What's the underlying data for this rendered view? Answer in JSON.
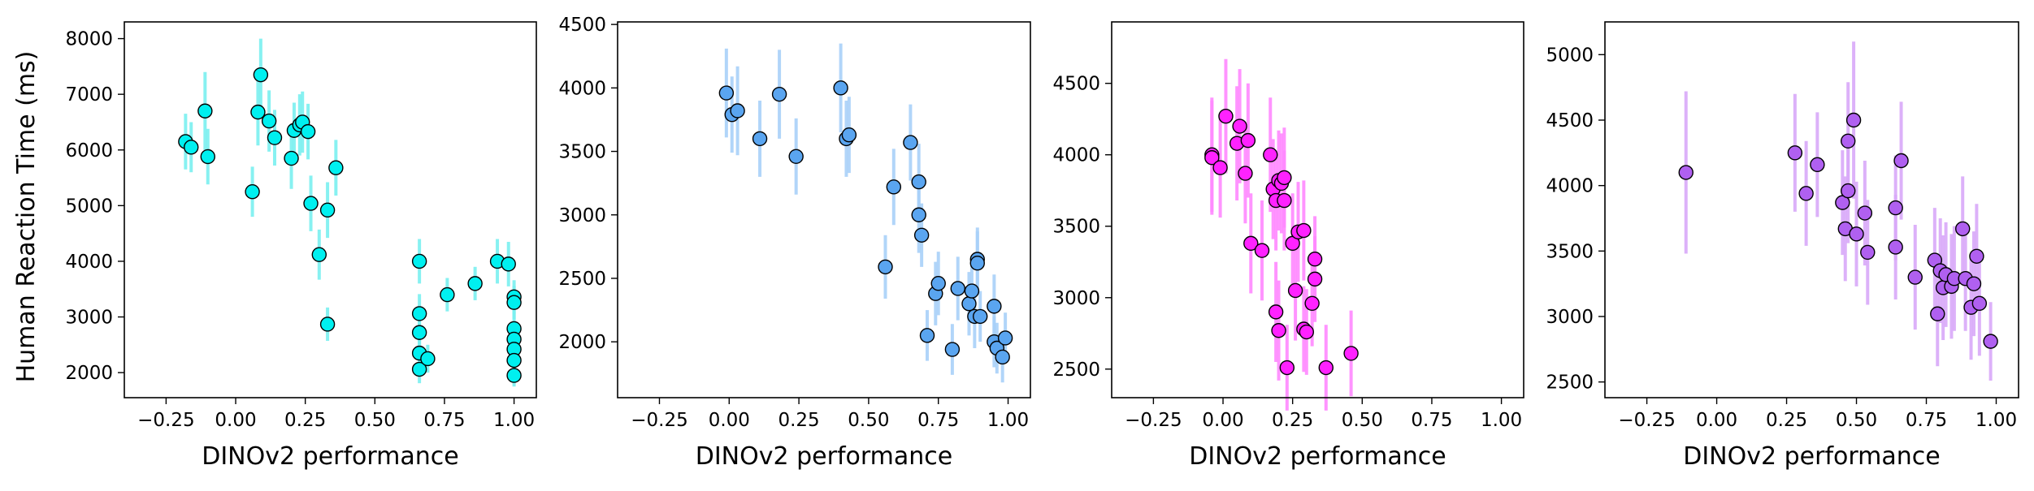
{
  "figure": {
    "ylabel": "Human Reaction Time (ms)"
  },
  "chart_data": [
    {
      "type": "scatter",
      "title": "",
      "xlabel": "DINOv2 performance",
      "ylabel": "Human Reaction Time (ms)",
      "xlim": [
        -0.4,
        1.08
      ],
      "ylim": [
        1550,
        8300
      ],
      "xticks": [
        -0.25,
        0.0,
        0.25,
        0.5,
        0.75,
        1.0
      ],
      "xtick_labels": [
        "−0.25",
        "0.00",
        "0.25",
        "0.50",
        "0.75",
        "1.00"
      ],
      "yticks": [
        2000,
        3000,
        4000,
        5000,
        6000,
        7000,
        8000
      ],
      "ytick_labels": [
        "2000",
        "3000",
        "4000",
        "5000",
        "6000",
        "7000",
        "8000"
      ],
      "colors": {
        "marker": "#00f0f0",
        "errorbar": "#7af0f0",
        "edge": "#000000"
      },
      "grid": false,
      "series": [
        {
          "points": [
            {
              "x": -0.18,
              "y": 6150,
              "err": 500
            },
            {
              "x": -0.16,
              "y": 6050,
              "err": 450
            },
            {
              "x": -0.11,
              "y": 6700,
              "err": 700
            },
            {
              "x": -0.1,
              "y": 5880,
              "err": 500
            },
            {
              "x": 0.06,
              "y": 5250,
              "err": 450
            },
            {
              "x": 0.08,
              "y": 6680,
              "err": 600
            },
            {
              "x": 0.09,
              "y": 7350,
              "err": 650
            },
            {
              "x": 0.12,
              "y": 6520,
              "err": 550
            },
            {
              "x": 0.14,
              "y": 6220,
              "err": 500
            },
            {
              "x": 0.2,
              "y": 5850,
              "err": 550
            },
            {
              "x": 0.21,
              "y": 6350,
              "err": 500
            },
            {
              "x": 0.23,
              "y": 6450,
              "err": 550
            },
            {
              "x": 0.24,
              "y": 6500,
              "err": 550
            },
            {
              "x": 0.26,
              "y": 6330,
              "err": 500
            },
            {
              "x": 0.27,
              "y": 5040,
              "err": 500
            },
            {
              "x": 0.3,
              "y": 4120,
              "err": 450
            },
            {
              "x": 0.33,
              "y": 4920,
              "err": 500
            },
            {
              "x": 0.33,
              "y": 2870,
              "err": 300
            },
            {
              "x": 0.36,
              "y": 5680,
              "err": 500
            },
            {
              "x": 0.66,
              "y": 4000,
              "err": 400
            },
            {
              "x": 0.66,
              "y": 3060,
              "err": 350
            },
            {
              "x": 0.66,
              "y": 2720,
              "err": 300
            },
            {
              "x": 0.66,
              "y": 2350,
              "err": 300
            },
            {
              "x": 0.66,
              "y": 2060,
              "err": 250
            },
            {
              "x": 0.69,
              "y": 2250,
              "err": 250
            },
            {
              "x": 0.76,
              "y": 3400,
              "err": 300
            },
            {
              "x": 0.86,
              "y": 3600,
              "err": 300
            },
            {
              "x": 0.94,
              "y": 4000,
              "err": 400
            },
            {
              "x": 0.98,
              "y": 3950,
              "err": 400
            },
            {
              "x": 1.0,
              "y": 3360,
              "err": 300
            },
            {
              "x": 1.0,
              "y": 3260,
              "err": 300
            },
            {
              "x": 1.0,
              "y": 2790,
              "err": 300
            },
            {
              "x": 1.0,
              "y": 2600,
              "err": 250
            },
            {
              "x": 1.0,
              "y": 2420,
              "err": 250
            },
            {
              "x": 1.0,
              "y": 2220,
              "err": 250
            },
            {
              "x": 1.0,
              "y": 1950,
              "err": 200
            }
          ]
        }
      ]
    },
    {
      "type": "scatter",
      "title": "",
      "xlabel": "DINOv2 performance",
      "ylabel": "",
      "xlim": [
        -0.4,
        1.08
      ],
      "ylim": [
        1560,
        4520
      ],
      "xticks": [
        -0.25,
        0.0,
        0.25,
        0.5,
        0.75,
        1.0
      ],
      "xtick_labels": [
        "−0.25",
        "0.00",
        "0.25",
        "0.50",
        "0.75",
        "1.00"
      ],
      "yticks": [
        2000,
        2500,
        3000,
        3500,
        4000,
        4500
      ],
      "ytick_labels": [
        "2000",
        "2500",
        "3000",
        "3500",
        "4000",
        "4500"
      ],
      "colors": {
        "marker": "#5aa5f0",
        "errorbar": "#a8d0f8",
        "edge": "#000000"
      },
      "grid": false,
      "series": [
        {
          "points": [
            {
              "x": -0.01,
              "y": 3960,
              "err": 350
            },
            {
              "x": 0.01,
              "y": 3790,
              "err": 300
            },
            {
              "x": 0.03,
              "y": 3820,
              "err": 350
            },
            {
              "x": 0.11,
              "y": 3600,
              "err": 300
            },
            {
              "x": 0.18,
              "y": 3950,
              "err": 350
            },
            {
              "x": 0.24,
              "y": 3460,
              "err": 300
            },
            {
              "x": 0.4,
              "y": 4000,
              "err": 350
            },
            {
              "x": 0.42,
              "y": 3600,
              "err": 300
            },
            {
              "x": 0.43,
              "y": 3630,
              "err": 300
            },
            {
              "x": 0.56,
              "y": 2590,
              "err": 250
            },
            {
              "x": 0.59,
              "y": 3220,
              "err": 300
            },
            {
              "x": 0.65,
              "y": 3570,
              "err": 300
            },
            {
              "x": 0.68,
              "y": 3260,
              "err": 300
            },
            {
              "x": 0.68,
              "y": 3000,
              "err": 300
            },
            {
              "x": 0.69,
              "y": 2840,
              "err": 250
            },
            {
              "x": 0.71,
              "y": 2050,
              "err": 200
            },
            {
              "x": 0.74,
              "y": 2380,
              "err": 250
            },
            {
              "x": 0.75,
              "y": 2460,
              "err": 250
            },
            {
              "x": 0.8,
              "y": 1940,
              "err": 200
            },
            {
              "x": 0.82,
              "y": 2420,
              "err": 250
            },
            {
              "x": 0.86,
              "y": 2300,
              "err": 250
            },
            {
              "x": 0.87,
              "y": 2400,
              "err": 250
            },
            {
              "x": 0.88,
              "y": 2200,
              "err": 250
            },
            {
              "x": 0.89,
              "y": 2650,
              "err": 250
            },
            {
              "x": 0.89,
              "y": 2620,
              "err": 250
            },
            {
              "x": 0.9,
              "y": 2200,
              "err": 200
            },
            {
              "x": 0.95,
              "y": 2280,
              "err": 250
            },
            {
              "x": 0.95,
              "y": 2000,
              "err": 200
            },
            {
              "x": 0.96,
              "y": 1950,
              "err": 200
            },
            {
              "x": 0.98,
              "y": 1880,
              "err": 200
            },
            {
              "x": 0.99,
              "y": 2030,
              "err": 200
            }
          ]
        }
      ]
    },
    {
      "type": "scatter",
      "title": "",
      "xlabel": "DINOv2 performance",
      "ylabel": "",
      "xlim": [
        -0.4,
        1.08
      ],
      "ylim": [
        2300,
        4930
      ],
      "xticks": [
        -0.25,
        0.0,
        0.25,
        0.5,
        0.75,
        1.0
      ],
      "xtick_labels": [
        "−0.25",
        "0.00",
        "0.25",
        "0.50",
        "0.75",
        "1.00"
      ],
      "yticks": [
        2500,
        3000,
        3500,
        4000,
        4500
      ],
      "ytick_labels": [
        "2500",
        "3000",
        "3500",
        "4000",
        "4500"
      ],
      "colors": {
        "marker": "#ff22ff",
        "errorbar": "#ff88ff",
        "edge": "#000000"
      },
      "grid": false,
      "series": [
        {
          "points": [
            {
              "x": -0.04,
              "y": 4000,
              "err": 400
            },
            {
              "x": -0.04,
              "y": 3980,
              "err": 400
            },
            {
              "x": -0.01,
              "y": 3910,
              "err": 350
            },
            {
              "x": 0.01,
              "y": 4270,
              "err": 400
            },
            {
              "x": 0.05,
              "y": 4080,
              "err": 400
            },
            {
              "x": 0.06,
              "y": 4200,
              "err": 400
            },
            {
              "x": 0.08,
              "y": 3870,
              "err": 350
            },
            {
              "x": 0.09,
              "y": 4100,
              "err": 400
            },
            {
              "x": 0.1,
              "y": 3380,
              "err": 350
            },
            {
              "x": 0.14,
              "y": 3330,
              "err": 350
            },
            {
              "x": 0.17,
              "y": 4000,
              "err": 400
            },
            {
              "x": 0.18,
              "y": 3760,
              "err": 350
            },
            {
              "x": 0.19,
              "y": 3680,
              "err": 350
            },
            {
              "x": 0.19,
              "y": 2900,
              "err": 350
            },
            {
              "x": 0.2,
              "y": 3820,
              "err": 350
            },
            {
              "x": 0.2,
              "y": 2770,
              "err": 350
            },
            {
              "x": 0.21,
              "y": 3800,
              "err": 350
            },
            {
              "x": 0.22,
              "y": 3680,
              "err": 350
            },
            {
              "x": 0.22,
              "y": 3840,
              "err": 350
            },
            {
              "x": 0.23,
              "y": 2510,
              "err": 300
            },
            {
              "x": 0.25,
              "y": 3380,
              "err": 350
            },
            {
              "x": 0.26,
              "y": 3050,
              "err": 350
            },
            {
              "x": 0.27,
              "y": 3460,
              "err": 350
            },
            {
              "x": 0.29,
              "y": 3470,
              "err": 350
            },
            {
              "x": 0.29,
              "y": 2780,
              "err": 300
            },
            {
              "x": 0.3,
              "y": 2760,
              "err": 300
            },
            {
              "x": 0.32,
              "y": 2960,
              "err": 300
            },
            {
              "x": 0.33,
              "y": 3130,
              "err": 300
            },
            {
              "x": 0.33,
              "y": 3270,
              "err": 300
            },
            {
              "x": 0.37,
              "y": 2510,
              "err": 300
            },
            {
              "x": 0.46,
              "y": 2610,
              "err": 300
            }
          ]
        }
      ]
    },
    {
      "type": "scatter",
      "title": "",
      "xlabel": "DINOv2 performance",
      "ylabel": "",
      "xlim": [
        -0.4,
        1.08
      ],
      "ylim": [
        2380,
        5250
      ],
      "xticks": [
        -0.25,
        0.0,
        0.25,
        0.5,
        0.75,
        1.0
      ],
      "xtick_labels": [
        "−0.25",
        "0.00",
        "0.25",
        "0.50",
        "0.75",
        "1.00"
      ],
      "yticks": [
        2500,
        3000,
        3500,
        4000,
        4500,
        5000
      ],
      "ytick_labels": [
        "2500",
        "3000",
        "3500",
        "4000",
        "4500",
        "5000"
      ],
      "colors": {
        "marker": "#b060f0",
        "errorbar": "#d8a8f8",
        "edge": "#000000"
      },
      "grid": false,
      "series": [
        {
          "points": [
            {
              "x": -0.11,
              "y": 4100,
              "err": 620
            },
            {
              "x": 0.28,
              "y": 4250,
              "err": 450
            },
            {
              "x": 0.32,
              "y": 3940,
              "err": 400
            },
            {
              "x": 0.36,
              "y": 4160,
              "err": 400
            },
            {
              "x": 0.45,
              "y": 3870,
              "err": 400
            },
            {
              "x": 0.46,
              "y": 3670,
              "err": 400
            },
            {
              "x": 0.47,
              "y": 3960,
              "err": 400
            },
            {
              "x": 0.47,
              "y": 4340,
              "err": 450
            },
            {
              "x": 0.49,
              "y": 4500,
              "err": 600
            },
            {
              "x": 0.5,
              "y": 3630,
              "err": 400
            },
            {
              "x": 0.53,
              "y": 3790,
              "err": 400
            },
            {
              "x": 0.54,
              "y": 3490,
              "err": 400
            },
            {
              "x": 0.64,
              "y": 3830,
              "err": 400
            },
            {
              "x": 0.64,
              "y": 3530,
              "err": 400
            },
            {
              "x": 0.66,
              "y": 4190,
              "err": 450
            },
            {
              "x": 0.71,
              "y": 3300,
              "err": 400
            },
            {
              "x": 0.78,
              "y": 3430,
              "err": 400
            },
            {
              "x": 0.79,
              "y": 3020,
              "err": 400
            },
            {
              "x": 0.8,
              "y": 3350,
              "err": 400
            },
            {
              "x": 0.81,
              "y": 3220,
              "err": 400
            },
            {
              "x": 0.82,
              "y": 3320,
              "err": 400
            },
            {
              "x": 0.84,
              "y": 3230,
              "err": 400
            },
            {
              "x": 0.85,
              "y": 3290,
              "err": 400
            },
            {
              "x": 0.88,
              "y": 3670,
              "err": 400
            },
            {
              "x": 0.89,
              "y": 3290,
              "err": 400
            },
            {
              "x": 0.91,
              "y": 3070,
              "err": 400
            },
            {
              "x": 0.92,
              "y": 3250,
              "err": 400
            },
            {
              "x": 0.93,
              "y": 3460,
              "err": 400
            },
            {
              "x": 0.94,
              "y": 3100,
              "err": 400
            },
            {
              "x": 0.98,
              "y": 2810,
              "err": 300
            }
          ]
        }
      ]
    }
  ]
}
